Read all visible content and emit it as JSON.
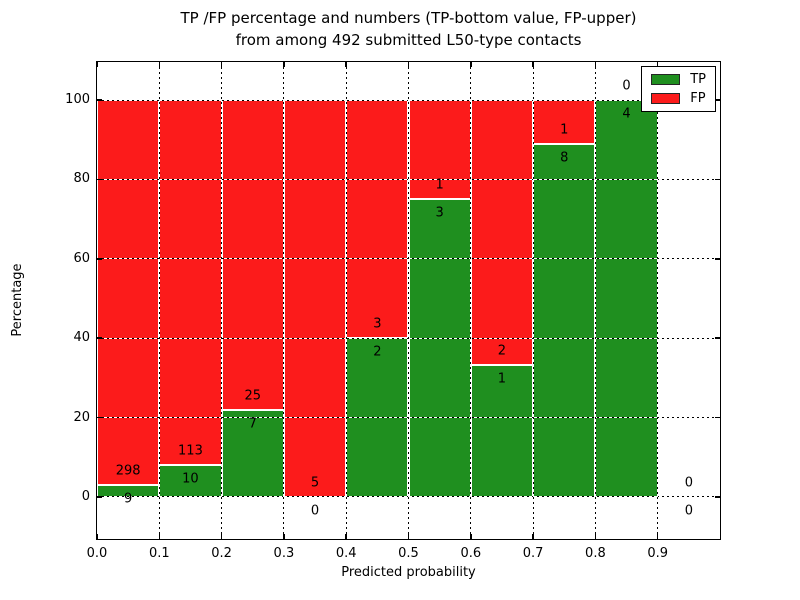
{
  "chart_data": {
    "type": "bar",
    "stacked": true,
    "title": "TP /FP percentage and numbers (TP-bottom value, FP-upper)",
    "subtitle": "from among 492 submitted L50-type contacts",
    "xlabel": "Predicted probability",
    "ylabel": "Percentage",
    "xlim": [
      0.0,
      1.0
    ],
    "ylim": [
      -10.6,
      109.6
    ],
    "xticks": {
      "values": [
        0.0,
        0.1,
        0.2,
        0.3,
        0.4,
        0.5,
        0.6,
        0.7,
        0.8,
        0.9
      ],
      "labels": [
        "0.0",
        "0.1",
        "0.2",
        "0.3",
        "0.4",
        "0.5",
        "0.6",
        "0.7",
        "0.8",
        "0.9"
      ]
    },
    "yticks": {
      "values": [
        0,
        20,
        40,
        60,
        80,
        100
      ],
      "labels": [
        "0",
        "20",
        "40",
        "60",
        "80",
        "100"
      ]
    },
    "grid": {
      "visible": true,
      "style": "dotted"
    },
    "colors": {
      "tp": "#1f8f1f",
      "fp": "#fc1b1b",
      "bar_edge": "#ffffff",
      "text": "#000000"
    },
    "legend": {
      "position": "upper right",
      "entries": [
        {
          "label": "TP",
          "color": "#1f8f1f"
        },
        {
          "label": "FP",
          "color": "#fc1b1b"
        }
      ]
    },
    "bin_edges": [
      0.0,
      0.1,
      0.2,
      0.3,
      0.4,
      0.5,
      0.6,
      0.7,
      0.8,
      0.9,
      1.0
    ],
    "series": [
      {
        "name": "TP",
        "values": [
          9,
          10,
          7,
          0,
          2,
          3,
          1,
          8,
          4,
          0
        ]
      },
      {
        "name": "FP",
        "values": [
          298,
          113,
          25,
          5,
          3,
          1,
          2,
          1,
          0,
          0
        ]
      }
    ],
    "bar_label_offset_pct": 3.5
  }
}
